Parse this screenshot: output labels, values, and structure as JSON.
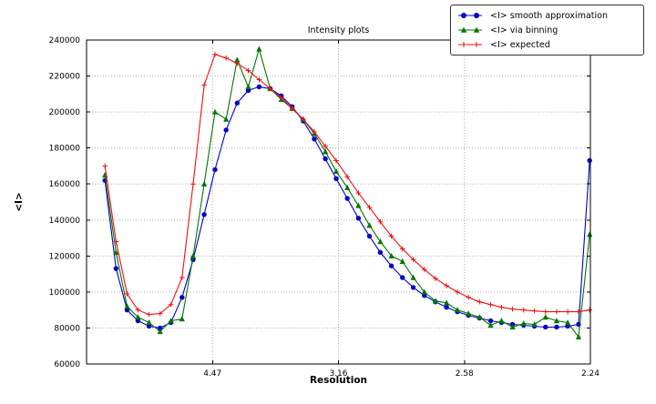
{
  "chart_data": {
    "type": "line",
    "title": "Intensity plots",
    "xlabel": "Resolution",
    "ylabel": "<I>",
    "grid": true,
    "legend_position": "upper right",
    "note": "x axis is linear in 1/d^2; tick labels show resolution d in Angstrom. Data values estimated from pixels.",
    "xlim": [
      0,
      0.2
    ],
    "ylim": [
      60000,
      240000
    ],
    "xticks": [
      {
        "value": 0.05,
        "label": "4.47"
      },
      {
        "value": 0.1,
        "label": "3.16"
      },
      {
        "value": 0.15,
        "label": "2.58"
      },
      {
        "value": 0.2,
        "label": "2.24"
      }
    ],
    "yticks": [
      {
        "value": 60000,
        "label": "60000"
      },
      {
        "value": 80000,
        "label": "80000"
      },
      {
        "value": 100000,
        "label": "100000"
      },
      {
        "value": 120000,
        "label": "120000"
      },
      {
        "value": 140000,
        "label": "140000"
      },
      {
        "value": 160000,
        "label": "160000"
      },
      {
        "value": 180000,
        "label": "180000"
      },
      {
        "value": 200000,
        "label": "200000"
      },
      {
        "value": 220000,
        "label": "220000"
      },
      {
        "value": 240000,
        "label": "240000"
      }
    ],
    "x": [
      0.0073,
      0.0117,
      0.0161,
      0.0204,
      0.0248,
      0.0292,
      0.0335,
      0.0379,
      0.0423,
      0.0467,
      0.051,
      0.0554,
      0.0598,
      0.0642,
      0.0685,
      0.0729,
      0.0773,
      0.0816,
      0.086,
      0.0904,
      0.0948,
      0.0991,
      0.1035,
      0.1079,
      0.1123,
      0.1166,
      0.121,
      0.1254,
      0.1297,
      0.1341,
      0.1385,
      0.1429,
      0.1472,
      0.1516,
      0.156,
      0.1604,
      0.1647,
      0.1691,
      0.1735,
      0.1778,
      0.1822,
      0.1866,
      0.191,
      0.1953,
      0.1997
    ],
    "series": [
      {
        "id": "smooth",
        "name": "<I> smooth approximation",
        "color": "#0000cc",
        "marker": "circle",
        "values": [
          162000,
          113000,
          90000,
          84000,
          81000,
          80000,
          83000,
          97000,
          118000,
          143000,
          168000,
          190000,
          205000,
          212000,
          214000,
          213000,
          209000,
          203000,
          195000,
          185000,
          174000,
          163000,
          152000,
          141000,
          131000,
          122000,
          114500,
          108000,
          102500,
          98000,
          94500,
          91500,
          89000,
          87000,
          85500,
          84000,
          83000,
          82000,
          81500,
          81000,
          80500,
          80500,
          81000,
          82000,
          173000
        ]
      },
      {
        "id": "binning",
        "name": "<I> via binning",
        "color": "#007700",
        "marker": "triangle",
        "values": [
          165000,
          122000,
          92000,
          86000,
          83000,
          78000,
          84000,
          85000,
          120000,
          160000,
          200000,
          196000,
          229000,
          214000,
          235000,
          213000,
          207000,
          202000,
          196000,
          188000,
          178000,
          167000,
          158000,
          148000,
          137000,
          128000,
          120000,
          117000,
          108000,
          100000,
          95000,
          94000,
          90000,
          88000,
          86000,
          81500,
          84000,
          80500,
          82500,
          82000,
          86000,
          84000,
          83000,
          75000,
          132000
        ]
      },
      {
        "id": "expected",
        "name": "<I> expected",
        "color": "#ee1111",
        "marker": "plus",
        "values": [
          170000,
          128000,
          99000,
          90000,
          87500,
          88000,
          93000,
          108000,
          160000,
          215000,
          232000,
          230000,
          227000,
          223000,
          218000,
          213000,
          208000,
          202000,
          196000,
          189000,
          181000,
          173000,
          164000,
          155000,
          147000,
          139000,
          131000,
          124000,
          118000,
          112500,
          107500,
          103500,
          100000,
          97000,
          94500,
          93000,
          91500,
          90500,
          90000,
          89500,
          89000,
          89000,
          89000,
          89000,
          90000
        ]
      }
    ]
  }
}
